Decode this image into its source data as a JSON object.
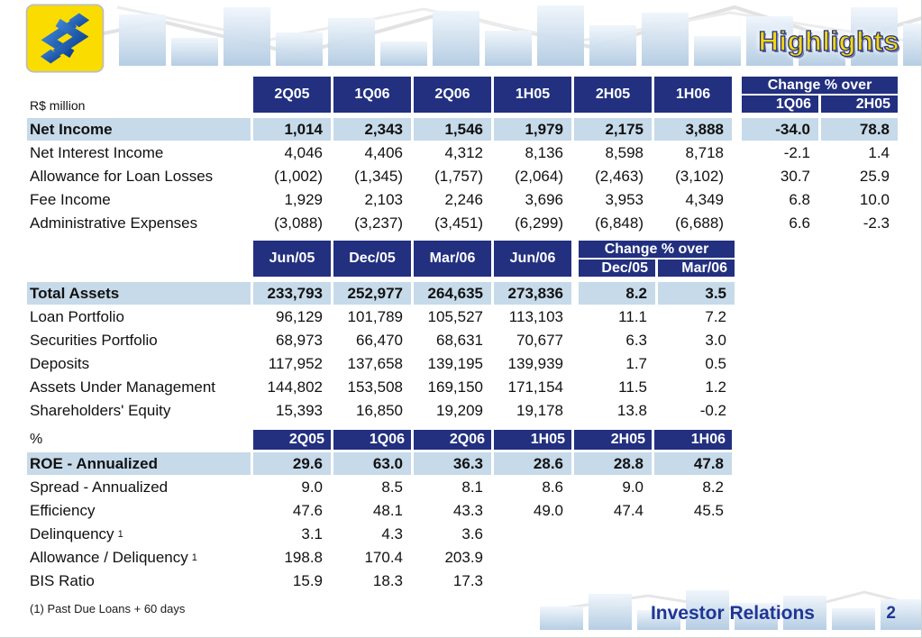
{
  "slide": {
    "title": "Highlights",
    "footnote": "(1) Past Due Loans + 60 days",
    "footer_label": "Investor Relations",
    "page_number": "2"
  },
  "colors": {
    "header_navy": "#22307f",
    "row_highlight": "#c6dae9",
    "title_yellow": "#f5d60e",
    "footer_navy": "#1f3694",
    "logo_yellow": "#fbdc00",
    "logo_blue": "#0c3f8e"
  },
  "table1": {
    "unit_label": "R$ million",
    "columns": [
      "2Q05",
      "1Q06",
      "2Q06",
      "1H05",
      "2H05",
      "1H06"
    ],
    "change_header": "Change % over",
    "change_columns": [
      "1Q06",
      "2H05"
    ],
    "rows": [
      {
        "label": "Net Income",
        "highlight": true,
        "values": [
          "1,014",
          "2,343",
          "1,546",
          "1,979",
          "2,175",
          "3,888"
        ],
        "changes": [
          "-34.0",
          "78.8"
        ]
      },
      {
        "label": "Net Interest Income",
        "values": [
          "4,046",
          "4,406",
          "4,312",
          "8,136",
          "8,598",
          "8,718"
        ],
        "changes": [
          "-2.1",
          "1.4"
        ]
      },
      {
        "label": "Allowance for Loan Losses",
        "values": [
          "(1,002)",
          "(1,345)",
          "(1,757)",
          "(2,064)",
          "(2,463)",
          "(3,102)"
        ],
        "changes": [
          "30.7",
          "25.9"
        ]
      },
      {
        "label": "Fee Income",
        "values": [
          "1,929",
          "2,103",
          "2,246",
          "3,696",
          "3,953",
          "4,349"
        ],
        "changes": [
          "6.8",
          "10.0"
        ]
      },
      {
        "label": "Administrative Expenses",
        "values": [
          "(3,088)",
          "(3,237)",
          "(3,451)",
          "(6,299)",
          "(6,848)",
          "(6,688)"
        ],
        "changes": [
          "6.6",
          "-2.3"
        ]
      }
    ]
  },
  "table2": {
    "unit_label": "",
    "columns": [
      "Jun/05",
      "Dec/05",
      "Mar/06",
      "Jun/06"
    ],
    "change_header": "Change % over",
    "change_columns": [
      "Dec/05",
      "Mar/06"
    ],
    "rows": [
      {
        "label": "Total Assets",
        "highlight": true,
        "values": [
          "233,793",
          "252,977",
          "264,635",
          "273,836"
        ],
        "changes": [
          "8.2",
          "3.5"
        ]
      },
      {
        "label": "Loan Portfolio",
        "values": [
          "96,129",
          "101,789",
          "105,527",
          "113,103"
        ],
        "changes": [
          "11.1",
          "7.2"
        ]
      },
      {
        "label": "Securities Portfolio",
        "values": [
          "68,973",
          "66,470",
          "68,631",
          "70,677"
        ],
        "changes": [
          "6.3",
          "3.0"
        ]
      },
      {
        "label": "Deposits",
        "values": [
          "117,952",
          "137,658",
          "139,195",
          "139,939"
        ],
        "changes": [
          "1.7",
          "0.5"
        ]
      },
      {
        "label": "Assets Under Management",
        "values": [
          "144,802",
          "153,508",
          "169,150",
          "171,154"
        ],
        "changes": [
          "11.5",
          "1.2"
        ]
      },
      {
        "label": "Shareholders' Equity",
        "values": [
          "15,393",
          "16,850",
          "19,209",
          "19,178"
        ],
        "changes": [
          "13.8",
          "-0.2"
        ]
      }
    ]
  },
  "table3": {
    "unit_label": "%",
    "columns": [
      "2Q05",
      "1Q06",
      "2Q06",
      "1H05",
      "2H05",
      "1H06"
    ],
    "rows": [
      {
        "label": "ROE - Annualized",
        "highlight": true,
        "values": [
          "29.6",
          "63.0",
          "36.3",
          "28.6",
          "28.8",
          "47.8"
        ]
      },
      {
        "label": "Spread - Annualized",
        "values": [
          "9.0",
          "8.5",
          "8.1",
          "8.6",
          "9.0",
          "8.2"
        ]
      },
      {
        "label": "Efficiency",
        "values": [
          "47.6",
          "48.1",
          "43.3",
          "49.0",
          "47.4",
          "45.5"
        ]
      },
      {
        "label": "Delinquency",
        "sup": "1",
        "values": [
          "3.1",
          "4.3",
          "3.6",
          "",
          "",
          ""
        ]
      },
      {
        "label": "Allowance / Deliquency",
        "sup": "1",
        "values": [
          "198.8",
          "170.4",
          "203.9",
          "",
          "",
          ""
        ]
      },
      {
        "label": "BIS Ratio",
        "values": [
          "15.9",
          "18.3",
          "17.3",
          "",
          "",
          ""
        ]
      }
    ]
  }
}
